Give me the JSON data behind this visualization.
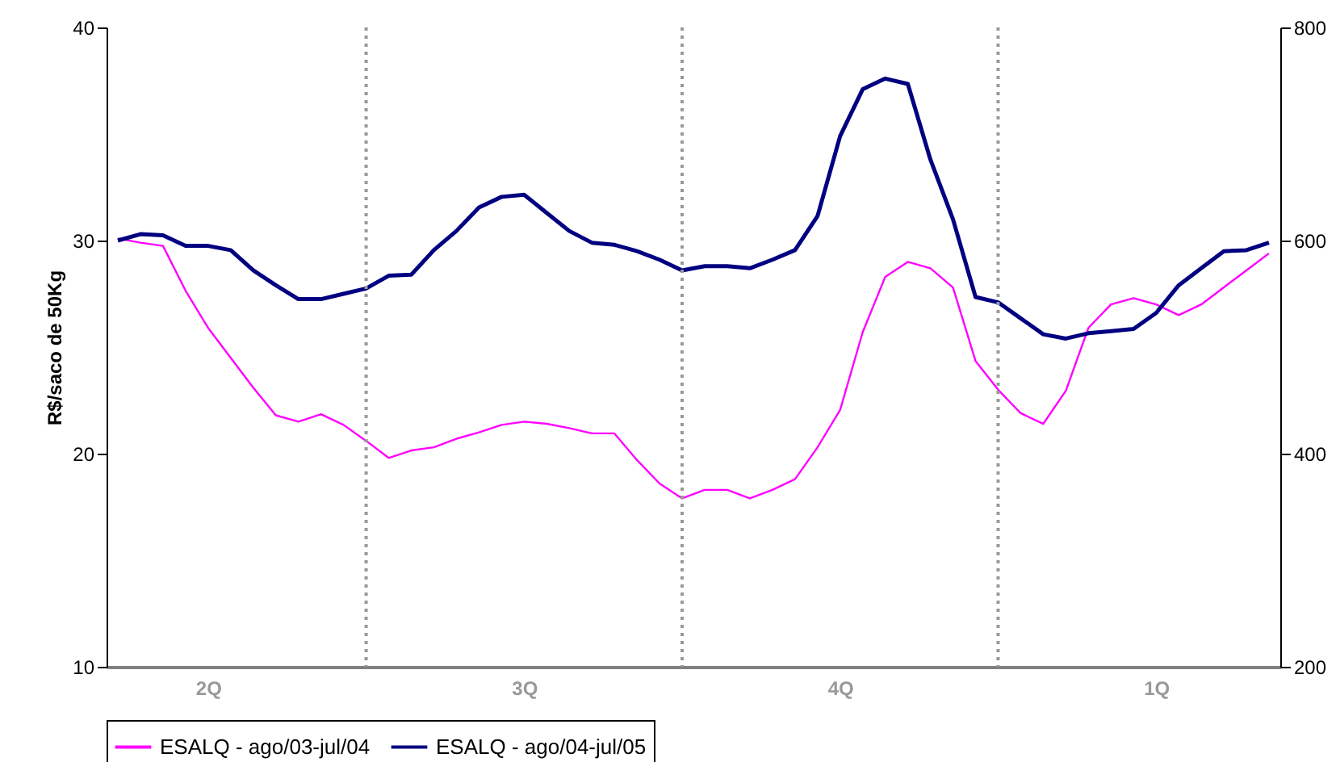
{
  "chart_data": {
    "type": "line",
    "ylabel": "R$/saco de 50Kg",
    "categories": [
      null,
      null,
      null,
      null,
      "2Q",
      null,
      null,
      null,
      null,
      null,
      null,
      null,
      null,
      null,
      null,
      null,
      null,
      null,
      "3Q",
      null,
      null,
      null,
      null,
      null,
      null,
      null,
      null,
      null,
      null,
      null,
      null,
      null,
      "4Q",
      null,
      null,
      null,
      null,
      null,
      null,
      null,
      null,
      null,
      null,
      null,
      null,
      null,
      "1Q",
      null,
      null,
      null,
      null,
      null
    ],
    "ylim": [
      10,
      40
    ],
    "yticks": [
      10,
      20,
      30,
      40
    ],
    "y2lim": [
      200,
      800
    ],
    "y2ticks": [
      200,
      400,
      600,
      800
    ],
    "series": [
      {
        "name": "ESALQ - ago/03-jul/04",
        "color": "#ff00ff",
        "values": [
          30.1,
          29.9,
          29.75,
          27.65,
          25.9,
          24.5,
          23.1,
          21.8,
          21.5,
          21.85,
          21.35,
          20.6,
          19.8,
          20.15,
          20.3,
          20.7,
          21.0,
          21.35,
          21.5,
          21.4,
          21.2,
          20.95,
          20.95,
          19.7,
          18.6,
          17.9,
          18.3,
          18.3,
          17.9,
          18.3,
          18.8,
          20.3,
          22.05,
          25.7,
          28.3,
          29.0,
          28.7,
          27.8,
          24.35,
          23.0,
          21.9,
          21.4,
          22.95,
          25.9,
          27.0,
          27.3,
          27.0,
          26.5,
          27.0,
          27.8,
          28.6,
          29.4
        ]
      },
      {
        "name": "ESALQ - ago/04-jul/05",
        "color": "#000080",
        "axis": "y2",
        "values": [
          600,
          606,
          605,
          595,
          595,
          591,
          572,
          558,
          545,
          545,
          550,
          555,
          567,
          568,
          591,
          609,
          631,
          641,
          643,
          626,
          609,
          598,
          596,
          590,
          582,
          572,
          576,
          576,
          574,
          582,
          591,
          623,
          698,
          742,
          752,
          747,
          676,
          620,
          547,
          542,
          527,
          512,
          508,
          513,
          515,
          517,
          532,
          558,
          574,
          590,
          591,
          598
        ]
      }
    ],
    "legend": "bottom",
    "marker": "none",
    "line_style": "solid",
    "grid": "x"
  }
}
